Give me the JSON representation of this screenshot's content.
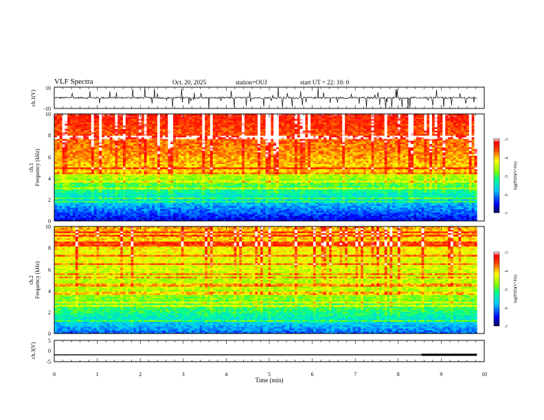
{
  "header": {
    "title": "VLF Spectra",
    "date": "Oct. 20, 2025",
    "station": "station=OUJ",
    "start": "start  UT =   22: 10: 0"
  },
  "chart_data": [
    {
      "type": "line",
      "panel": "ch1-waveform",
      "ylabel": "ch.1(V)",
      "yticks": [
        "10",
        "-10"
      ],
      "ylim": [
        -10,
        10
      ],
      "xlim": [
        0,
        9.83
      ],
      "color": "#000000",
      "description_of_data": "broadband VLF waveform near 0 V with frequent impulsive spikes"
    },
    {
      "type": "heatmap",
      "panel": "ch1-spectrogram",
      "ylabel_line1": "ch.1",
      "ylabel_line2": "Frequency (kHz)",
      "yticks": [
        "0",
        "2",
        "4",
        "6",
        "8",
        "10"
      ],
      "ylim": [
        0,
        10
      ],
      "xlim": [
        0,
        9.83
      ],
      "colorbar": {
        "label": "log(PSD)(V²/Hz)",
        "ticks": [
          "-3",
          "-4",
          "-5",
          "-6",
          "-7"
        ],
        "range": [
          -7,
          -3
        ]
      }
    },
    {
      "type": "heatmap",
      "panel": "ch2-spectrogram",
      "ylabel_line1": "ch.2",
      "ylabel_line2": "Frequency (kHz)",
      "yticks": [
        "0",
        "2",
        "4",
        "6",
        "8",
        "10"
      ],
      "ylim": [
        0,
        10
      ],
      "xlim": [
        0,
        9.83
      ],
      "colorbar": {
        "label": "log(PSD)(V²/Hz)",
        "ticks": [
          "-3",
          "-4",
          "-5",
          "-6",
          "-7"
        ],
        "range": [
          -7,
          -3
        ]
      }
    },
    {
      "type": "line",
      "panel": "ch3-waveform",
      "ylabel": "ch.3(V)",
      "yticks": [
        "5",
        "0",
        "-5"
      ],
      "ylim": [
        -5,
        5
      ],
      "xlim": [
        0,
        9.83
      ],
      "x": [
        0,
        8.55,
        8.55,
        9.83
      ],
      "y": [
        -1.8,
        -1.8,
        -1.5,
        -1.5
      ],
      "color": "#000000"
    }
  ],
  "xaxis": {
    "label": "Time  (min)",
    "ticks": [
      "0",
      "1",
      "2",
      "3",
      "4",
      "5",
      "6",
      "7",
      "8",
      "9",
      "10"
    ],
    "range": [
      0,
      10
    ]
  }
}
